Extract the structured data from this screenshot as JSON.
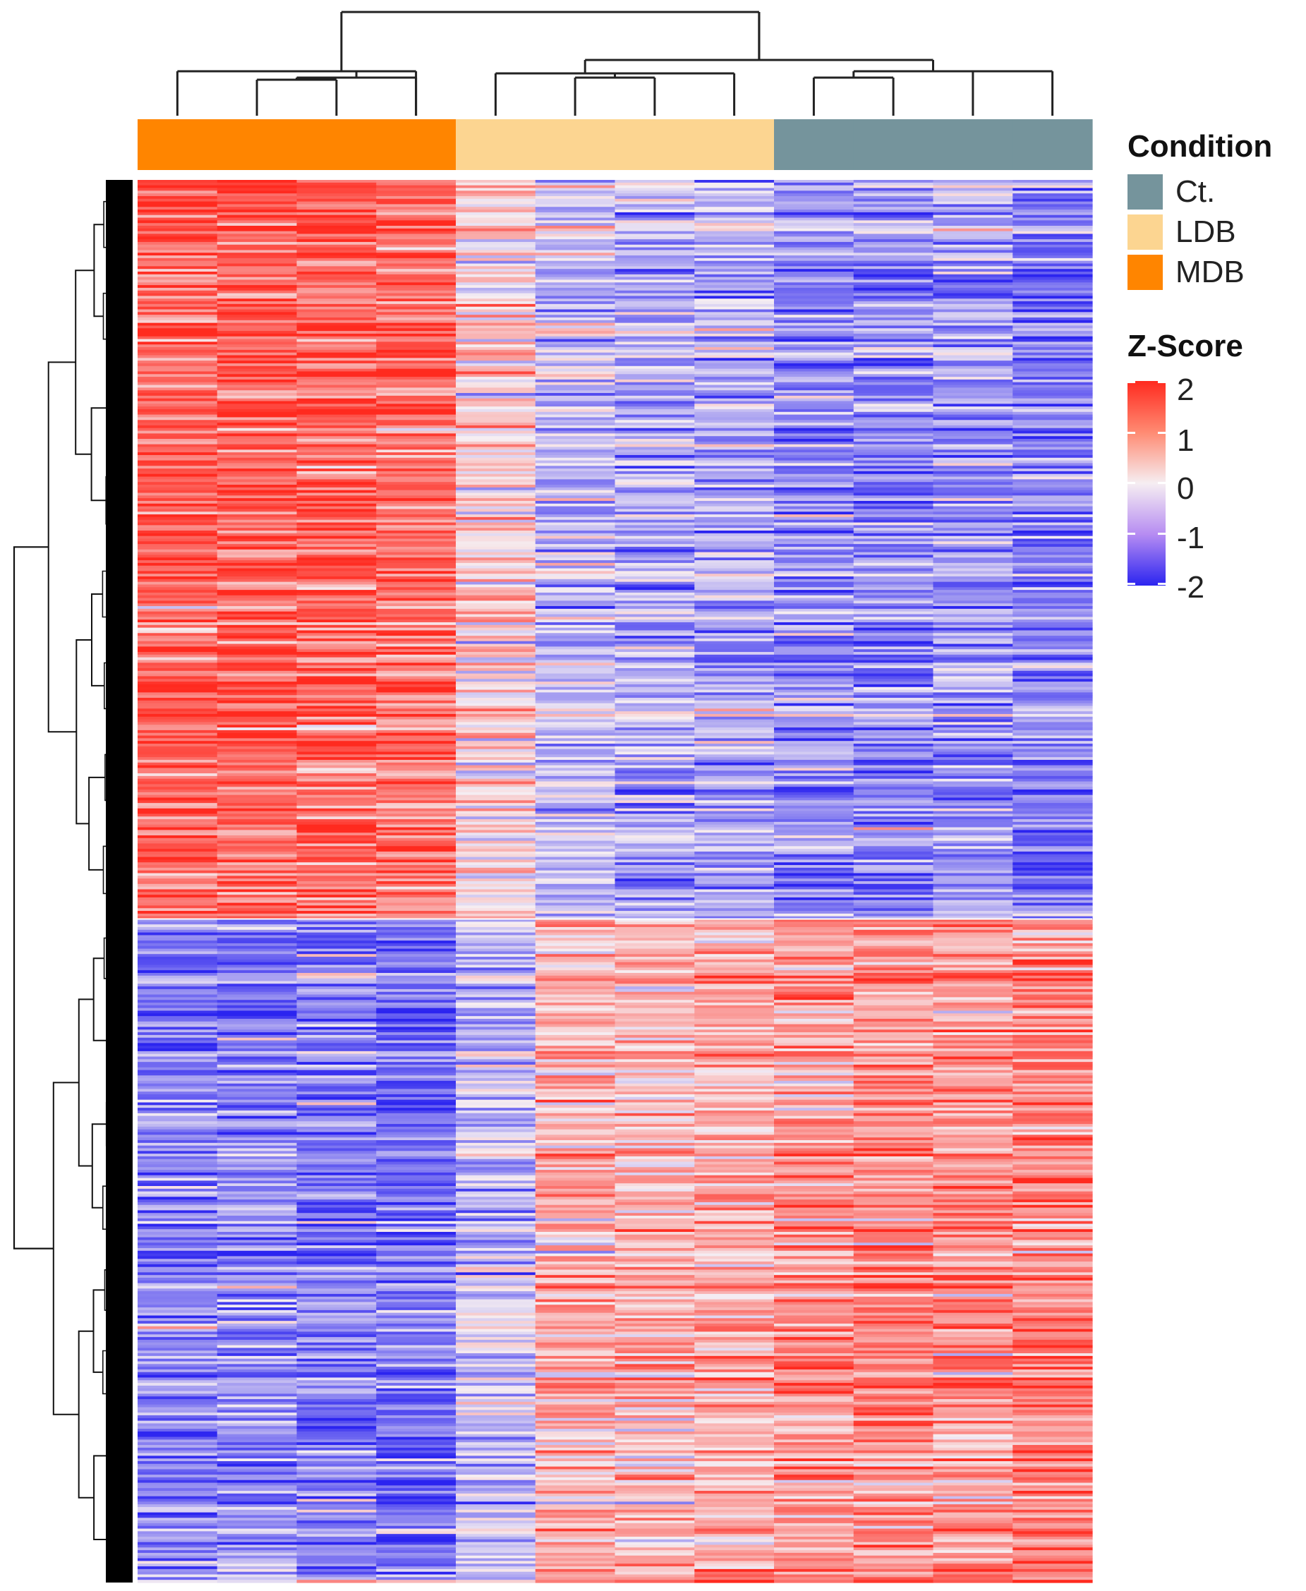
{
  "chart_data": {
    "type": "heatmap",
    "title": "",
    "xlabel": "",
    "ylabel": "",
    "column_count": 12,
    "row_clusters": 2,
    "column_conditions": [
      "MDB",
      "MDB",
      "MDB",
      "MDB",
      "LDB",
      "LDB",
      "LDB",
      "LDB",
      "Ct.",
      "Ct.",
      "Ct.",
      "Ct."
    ],
    "cluster_mean_zscore": {
      "upper_cluster": [
        1.4,
        1.5,
        1.4,
        1.3,
        0.3,
        -0.5,
        -0.6,
        -0.7,
        -1.0,
        -1.0,
        -0.9,
        -1.1
      ],
      "lower_cluster": [
        -1.0,
        -1.0,
        -1.1,
        -1.2,
        -0.4,
        0.6,
        0.6,
        0.7,
        0.9,
        1.0,
        0.9,
        1.1
      ]
    },
    "legend": {
      "condition": {
        "title": "Condition",
        "entries": [
          {
            "label": "Ct.",
            "color": "#75949c"
          },
          {
            "label": "LDB",
            "color": "#fcd591"
          },
          {
            "label": "MDB",
            "color": "#ff8500"
          }
        ]
      },
      "zscore": {
        "title": "Z-Score",
        "ticks": [
          "2",
          "1",
          "0",
          "-1",
          "-2"
        ],
        "range": [
          -2,
          2
        ],
        "colors": {
          "high": "#ff2a1f",
          "mid": "#f6eef2",
          "low": "#2b24f0"
        }
      }
    }
  }
}
